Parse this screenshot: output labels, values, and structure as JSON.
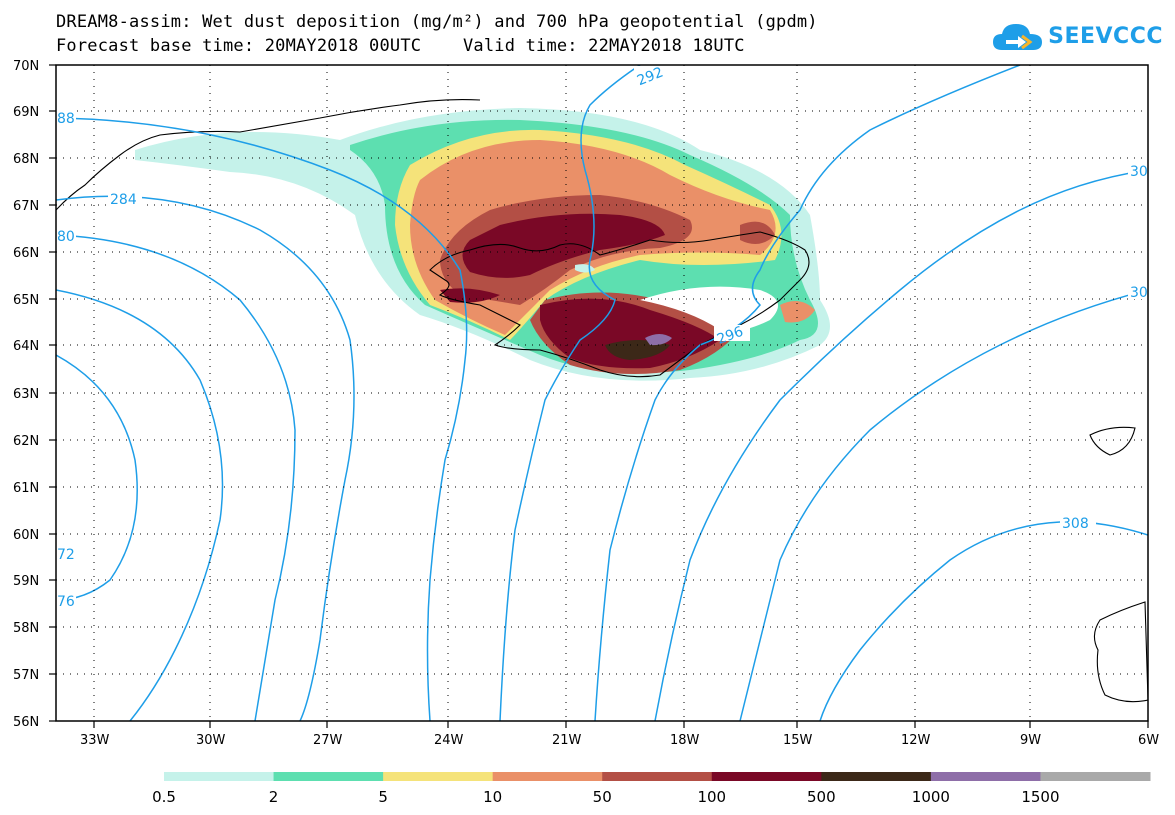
{
  "header": {
    "title_line1": "DREAM8-assim: Wet dust deposition (mg/m²) and 700 hPa geopotential (gpdm)",
    "title_line2": "Forecast base time: 20MAY2018 00UTC    Valid time: 22MAY2018 18UTC",
    "logo_text": "SEEVCCC"
  },
  "map": {
    "lat_labels": [
      "70N",
      "69N",
      "68N",
      "67N",
      "66N",
      "65N",
      "64N",
      "63N",
      "62N",
      "61N",
      "60N",
      "59N",
      "58N",
      "57N",
      "56N"
    ],
    "lon_labels": [
      "33W",
      "30W",
      "27W",
      "24W",
      "21W",
      "18W",
      "15W",
      "12W",
      "9W",
      "6W"
    ],
    "contour_color": "#1e9ee8",
    "contour_labels": [
      "88",
      "284",
      "80",
      "292",
      "296",
      "30",
      "30",
      "308",
      "72",
      "76"
    ]
  },
  "legend": {
    "colors": [
      "#c5f2ea",
      "#5ddfb0",
      "#f5e37a",
      "#ea9068",
      "#b34f45",
      "#7a0826",
      "#3c2818",
      "#8e6ea8",
      "#a9a9a9"
    ],
    "labels": [
      "0.5",
      "2",
      "5",
      "10",
      "50",
      "100",
      "500",
      "1000",
      "1500"
    ]
  }
}
